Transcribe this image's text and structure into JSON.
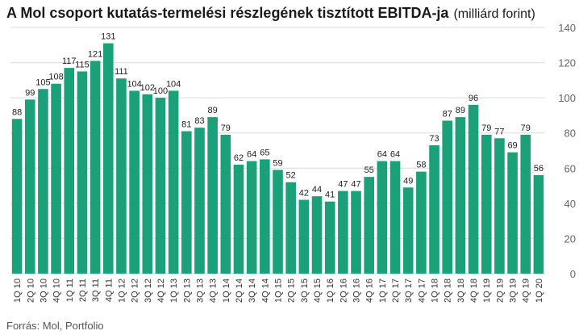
{
  "source": "Forrás: Mol, Portfolio",
  "chart_data": {
    "type": "bar",
    "title": "A Mol csoport kutatás-termelési részlegének tisztított EBITDA-ja",
    "unit": "(milliárd forint)",
    "xlabel": "",
    "ylabel": "",
    "ylim": [
      0,
      140
    ],
    "yticks": [
      0,
      20,
      40,
      60,
      80,
      100,
      120,
      140
    ],
    "grid": true,
    "legend": "none",
    "bar_color": "#1aa179",
    "categories": [
      "1Q 10",
      "2Q 10",
      "3Q 10",
      "4Q 10",
      "1Q 11",
      "2Q 11",
      "3Q 11",
      "4Q 11",
      "1Q 12",
      "2Q 12",
      "3Q 12",
      "4Q 12",
      "1Q 13",
      "2Q 13",
      "3Q 13",
      "4Q 13",
      "1Q 14",
      "2Q 14",
      "3Q 14",
      "4Q 14",
      "1Q 15",
      "2Q 15",
      "3Q 15",
      "4Q 15",
      "1Q 16",
      "2Q 16",
      "3Q 16",
      "4Q 16",
      "1Q 17",
      "2Q 17",
      "3Q 17",
      "4Q 17",
      "1Q 18",
      "2Q 18",
      "3Q 18",
      "4Q 18",
      "1Q 19",
      "2Q 19",
      "3Q 19",
      "4Q 19",
      "1Q 20"
    ],
    "values": [
      88,
      99,
      105,
      108,
      117,
      115,
      121,
      131,
      111,
      104,
      102,
      100,
      104,
      81,
      83,
      89,
      79,
      62,
      64,
      65,
      59,
      52,
      42,
      44,
      41,
      47,
      47,
      55,
      64,
      64,
      49,
      58,
      73,
      87,
      89,
      96,
      79,
      77,
      69,
      79,
      56
    ]
  }
}
